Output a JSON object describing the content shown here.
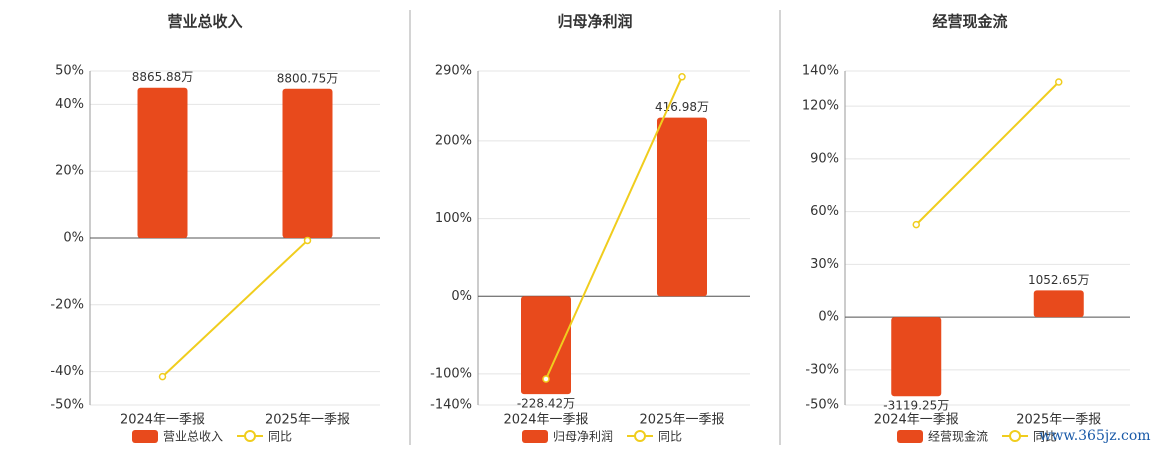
{
  "charts": [
    {
      "type": "combo",
      "title": "营业总收入",
      "categories": [
        "2024年一季报",
        "2025年一季报"
      ],
      "series": [
        {
          "name": "营业总收入",
          "type": "bar",
          "color": "#e84a1c",
          "values": [
            8865.88,
            8800.75
          ],
          "value_labels": [
            "8865.88万",
            "8800.75万"
          ]
        },
        {
          "name": "同比",
          "type": "line",
          "color": "#f0cd1e",
          "values": [
            -41.5,
            -0.73
          ]
        }
      ],
      "ylim": [
        -50,
        50
      ],
      "yticks": [
        {
          "value": -50,
          "label": "-50%"
        },
        {
          "value": -40,
          "label": "-40%"
        },
        {
          "value": -20,
          "label": "-20%"
        },
        {
          "value": 0,
          "label": "0%"
        },
        {
          "value": 20,
          "label": "20%"
        },
        {
          "value": 40,
          "label": "40%"
        },
        {
          "value": 50,
          "label": "50%"
        }
      ],
      "grid": true
    },
    {
      "type": "combo",
      "title": "归母净利润",
      "categories": [
        "2024年一季报",
        "2025年一季报"
      ],
      "series": [
        {
          "name": "归母净利润",
          "type": "bar",
          "color": "#e84a1c",
          "values": [
            -228.42,
            416.98
          ],
          "value_labels": [
            "-228.42万",
            "416.98万"
          ]
        },
        {
          "name": "同比",
          "type": "line",
          "color": "#f0cd1e",
          "values": [
            -106.5,
            282.55
          ]
        }
      ],
      "ylim": [
        -140,
        290
      ],
      "yticks": [
        {
          "value": -140,
          "label": "-140%"
        },
        {
          "value": -100,
          "label": "-100%"
        },
        {
          "value": 0,
          "label": "0%"
        },
        {
          "value": 100,
          "label": "100%"
        },
        {
          "value": 200,
          "label": "200%"
        },
        {
          "value": 290,
          "label": "290%"
        }
      ],
      "grid": true
    },
    {
      "type": "combo",
      "title": "经营现金流",
      "categories": [
        "2024年一季报",
        "2025年一季报"
      ],
      "series": [
        {
          "name": "经营现金流",
          "type": "bar",
          "color": "#e84a1c",
          "values": [
            -3119.25,
            1052.65
          ],
          "value_labels": [
            "-3119.25万",
            "1052.65万"
          ]
        },
        {
          "name": "同比",
          "type": "line",
          "color": "#f0cd1e",
          "values": [
            52.6,
            133.75
          ]
        }
      ],
      "ylim": [
        -50,
        140
      ],
      "yticks": [
        {
          "value": -50,
          "label": "-50%"
        },
        {
          "value": -30,
          "label": "-30%"
        },
        {
          "value": 0,
          "label": "0%"
        },
        {
          "value": 30,
          "label": "30%"
        },
        {
          "value": 60,
          "label": "60%"
        },
        {
          "value": 90,
          "label": "90%"
        },
        {
          "value": 120,
          "label": "120%"
        },
        {
          "value": 140,
          "label": "140%"
        }
      ],
      "grid": true
    }
  ],
  "watermark": "www.365jz.com"
}
